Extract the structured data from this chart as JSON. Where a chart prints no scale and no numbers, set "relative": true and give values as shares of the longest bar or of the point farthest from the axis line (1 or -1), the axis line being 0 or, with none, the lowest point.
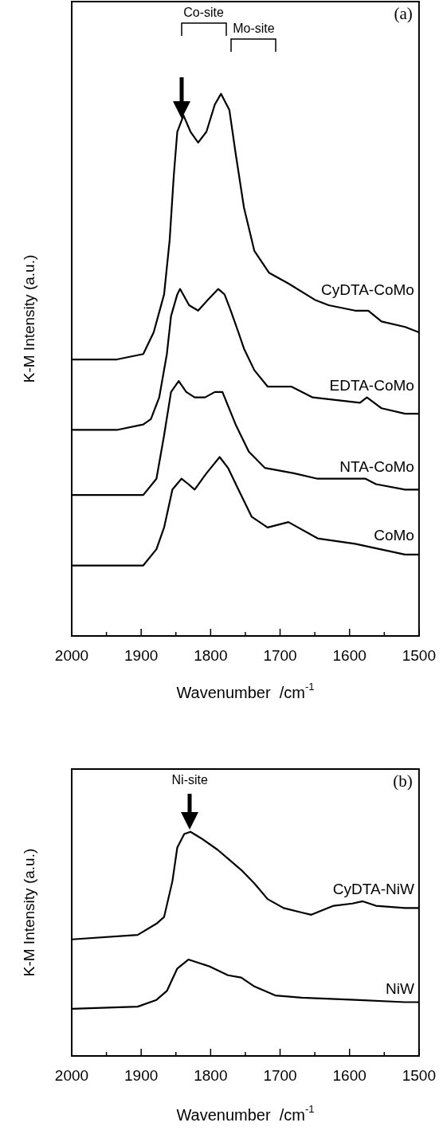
{
  "chart_data": [
    {
      "type": "line",
      "relative": true,
      "xlabel": "Wavenumber  /cm$^{-1}$",
      "ylabel": "K-M Intensity (a.u.)",
      "xlim": [
        2000,
        1500
      ],
      "xticks": [
        2000,
        {
          "value": 1950,
          "label": null
        },
        1900,
        {
          "value": 1850,
          "label": null
        },
        1800,
        {
          "value": 1750,
          "label": null
        },
        1700,
        {
          "value": 1650,
          "label": null
        },
        1600,
        {
          "value": 1550,
          "label": null
        },
        1500
      ],
      "annotations": [
        "(a)",
        "Co-site",
        "Mo-site"
      ],
      "series": [
        {
          "name": "CyDTA-CoMo",
          "color": "#000000",
          "x": [
            2000,
            1935,
            1897,
            1882,
            1867,
            1859,
            1853,
            1848,
            1839,
            1829,
            1818,
            1806,
            1794,
            1785,
            1773,
            1764,
            1752,
            1737,
            1716,
            1688,
            1650,
            1630,
            1592,
            1573,
            1554,
            1520,
            1500
          ],
          "values": [
            0.51,
            0.51,
            0.52,
            0.56,
            0.63,
            0.73,
            0.85,
            0.93,
            0.96,
            0.93,
            0.91,
            0.93,
            0.98,
            1,
            0.97,
            0.89,
            0.79,
            0.71,
            0.67,
            0.65,
            0.62,
            0.61,
            0.6,
            0.6,
            0.58,
            0.57,
            0.56
          ]
        },
        {
          "name": "EDTA-CoMo",
          "color": "#000000",
          "x": [
            2000,
            1935,
            1897,
            1886,
            1874,
            1863,
            1857,
            1848,
            1844,
            1831,
            1818,
            1804,
            1789,
            1780,
            1771,
            1760,
            1752,
            1737,
            1718,
            1684,
            1653,
            1585,
            1575,
            1554,
            1520,
            1500
          ],
          "values": [
            0.38,
            0.38,
            0.39,
            0.4,
            0.44,
            0.52,
            0.59,
            0.63,
            0.64,
            0.61,
            0.6,
            0.62,
            0.64,
            0.63,
            0.6,
            0.56,
            0.53,
            0.49,
            0.46,
            0.46,
            0.44,
            0.43,
            0.44,
            0.42,
            0.41,
            0.41
          ]
        },
        {
          "name": "NTA-CoMo",
          "color": "#000000",
          "x": [
            2000,
            1935,
            1897,
            1878,
            1867,
            1857,
            1846,
            1835,
            1823,
            1808,
            1794,
            1783,
            1764,
            1745,
            1722,
            1680,
            1646,
            1577,
            1562,
            1520,
            1500
          ],
          "values": [
            0.26,
            0.26,
            0.26,
            0.29,
            0.37,
            0.45,
            0.47,
            0.45,
            0.44,
            0.44,
            0.45,
            0.45,
            0.39,
            0.34,
            0.31,
            0.3,
            0.29,
            0.29,
            0.28,
            0.27,
            0.27
          ]
        },
        {
          "name": "CoMo",
          "color": "#000000",
          "x": [
            2000,
            1935,
            1897,
            1878,
            1867,
            1855,
            1842,
            1832,
            1823,
            1806,
            1787,
            1775,
            1760,
            1741,
            1718,
            1688,
            1646,
            1592,
            1520,
            1500
          ],
          "values": [
            0.13,
            0.13,
            0.13,
            0.16,
            0.2,
            0.27,
            0.29,
            0.28,
            0.27,
            0.3,
            0.33,
            0.31,
            0.27,
            0.22,
            0.2,
            0.21,
            0.18,
            0.17,
            0.15,
            0.15
          ]
        }
      ]
    },
    {
      "type": "line",
      "relative": true,
      "xlabel": "Wavenumber  /cm$^{-1}$",
      "ylabel": "K-M Intensity (a.u.)",
      "xlim": [
        2000,
        1500
      ],
      "xticks": [
        2000,
        {
          "value": 1950,
          "label": null
        },
        1900,
        {
          "value": 1850,
          "label": null
        },
        1800,
        {
          "value": 1750,
          "label": null
        },
        1700,
        {
          "value": 1650,
          "label": null
        },
        1600,
        {
          "value": 1550,
          "label": null
        },
        1500
      ],
      "annotations": [
        "(b)",
        "Ni-site"
      ],
      "series": [
        {
          "name": "CyDTA-NiW",
          "color": "#000000",
          "x": [
            2000,
            1905,
            1878,
            1867,
            1855,
            1848,
            1838,
            1829,
            1813,
            1790,
            1771,
            1756,
            1737,
            1718,
            1695,
            1669,
            1655,
            1623,
            1596,
            1581,
            1562,
            1520,
            1500
          ],
          "values": [
            0.52,
            0.54,
            0.59,
            0.62,
            0.78,
            0.93,
            0.99,
            1,
            0.97,
            0.92,
            0.87,
            0.83,
            0.77,
            0.7,
            0.66,
            0.64,
            0.63,
            0.67,
            0.68,
            0.69,
            0.67,
            0.66,
            0.66
          ]
        },
        {
          "name": "NiW",
          "color": "#000000",
          "x": [
            2000,
            1905,
            1878,
            1863,
            1848,
            1832,
            1802,
            1775,
            1756,
            1737,
            1707,
            1669,
            1592,
            1520,
            1500
          ],
          "values": [
            0.21,
            0.22,
            0.25,
            0.29,
            0.39,
            0.43,
            0.4,
            0.36,
            0.35,
            0.31,
            0.27,
            0.26,
            0.25,
            0.24,
            0.24
          ]
        }
      ]
    }
  ]
}
